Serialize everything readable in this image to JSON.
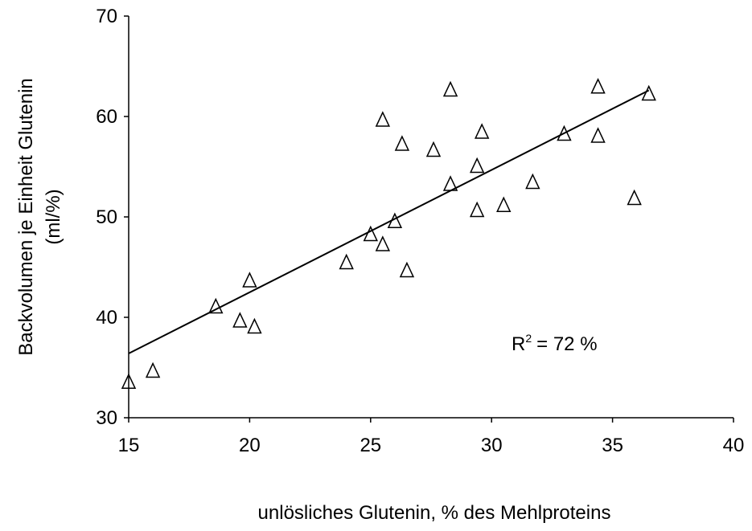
{
  "chart_data": {
    "type": "scatter",
    "xlabel": "unlösliches Glutenin, % des Mehlproteins",
    "ylabel": [
      "Backvolumen je Einheit Glutenin",
      "(ml/%)"
    ],
    "x": [
      15,
      16,
      18.6,
      19.6,
      20.0,
      20.2,
      24.0,
      25.0,
      25.5,
      25.5,
      26.0,
      26.3,
      26.5,
      27.6,
      28.3,
      28.3,
      29.4,
      29.4,
      29.6,
      30.5,
      31.7,
      33.0,
      34.4,
      34.4,
      35.9,
      36.5
    ],
    "values": [
      33.5,
      34.6,
      41.0,
      39.6,
      43.6,
      39.0,
      45.4,
      48.2,
      47.2,
      59.6,
      49.5,
      57.2,
      44.6,
      56.6,
      53.2,
      62.6,
      55.0,
      50.6,
      58.4,
      51.1,
      53.4,
      58.2,
      62.9,
      58.0,
      51.8,
      62.2
    ],
    "color": "#000000",
    "trendline": {
      "x": [
        15,
        36.5
      ],
      "y": [
        36.4,
        62.6
      ]
    },
    "annotation": {
      "base": "R",
      "superscript": "2",
      "rest": "= 72 %"
    },
    "xlim": [
      15,
      40
    ],
    "xticks": [
      15,
      20,
      25,
      30,
      35,
      40
    ],
    "ylim": [
      30,
      70
    ],
    "yticks": [
      30,
      40,
      50,
      60,
      70
    ]
  }
}
